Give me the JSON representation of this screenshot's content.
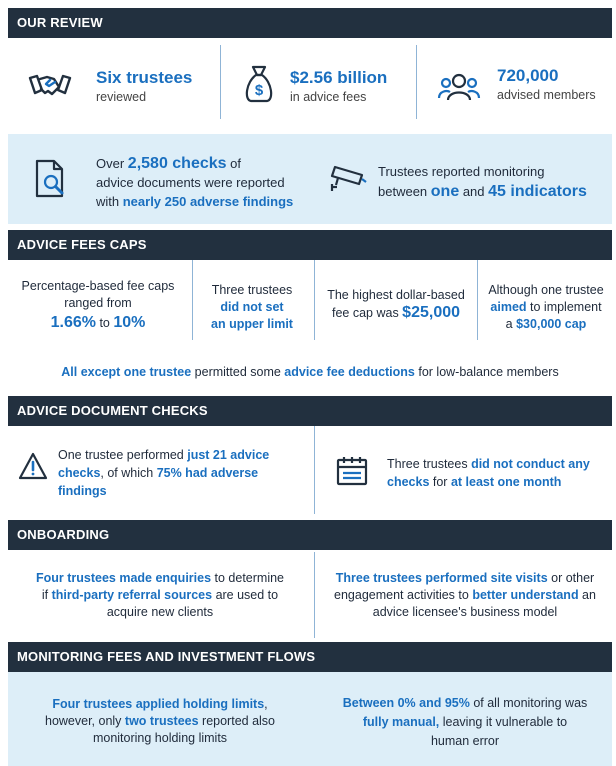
{
  "sections": {
    "review": "OUR REVIEW",
    "fees": "ADVICE FEES CAPS",
    "checks": "ADVICE DOCUMENT CHECKS",
    "onboarding": "ONBOARDING",
    "monitoring": "MONITORING FEES AND INVESTMENT FLOWS"
  },
  "review": {
    "trustees_big": "Six trustees",
    "trustees_small": "reviewed",
    "fees_big": "$2.56 billion",
    "fees_small": "in advice fees",
    "members_big": "720,000",
    "members_small": "advised members",
    "checks": {
      "t1": "Over ",
      "t2": "2,580 checks",
      "t3": " of",
      "t4": "advice documents were reported",
      "t5": "with ",
      "t6": "nearly 250 adverse findings"
    },
    "monitor": {
      "t1": "Trustees reported monitoring",
      "t2": "between ",
      "t3": "one",
      "t4": " and ",
      "t5": "45 indicators"
    }
  },
  "fees": {
    "c1": {
      "t1": "Percentage-based fee caps",
      "t2": "ranged from",
      "t3": "1.66%",
      "t4": " to ",
      "t5": "10%"
    },
    "c2": {
      "t1": "Three trustees",
      "t2": "did not set",
      "t3": "an upper limit"
    },
    "c3": {
      "t1": "The highest dollar-based",
      "t2": "fee cap was ",
      "t3": "$25,000"
    },
    "c4": {
      "t1": "Although one trustee",
      "t2": "aimed",
      "t3": " to implement",
      "t4": "a ",
      "t5": "$30,000 cap"
    },
    "note": {
      "t1": "All except one trustee",
      "t2": " permitted some ",
      "t3": "advice fee deductions",
      "t4": " for low-balance members"
    }
  },
  "checks": {
    "left": {
      "t1": "One trustee performed ",
      "t2": "just 21 advice",
      "t3": "checks",
      "t4": ", of which ",
      "t5": "75% had adverse",
      "t6": "findings"
    },
    "right": {
      "t1": "Three trustees ",
      "t2": "did not conduct any",
      "t3": "checks",
      "t4": " for ",
      "t5": "at least one month"
    }
  },
  "onboarding": {
    "left": {
      "t1": "Four trustees made enquiries",
      "t2": " to determine",
      "t3": "if ",
      "t4": "third-party referral sources",
      "t5": " are used to",
      "t6": "acquire new clients"
    },
    "right": {
      "t1": "Three trustees performed site visits",
      "t2": " or other",
      "t3": "engagement activities to ",
      "t4": "better understand",
      "t5": " an",
      "t6": "advice licensee's business model"
    }
  },
  "monitoring": {
    "left": {
      "t1": "Four trustees applied holding limits",
      "t2": ",",
      "t3": "however, only ",
      "t4": "two trustees",
      "t5": " reported also",
      "t6": "monitoring holding limits"
    },
    "right": {
      "t1": "Between 0% and 95%",
      "t2": " of all monitoring was",
      "t3": "fully manual,",
      "t4": " leaving it vulnerable to",
      "t5": "human error"
    }
  },
  "icons": [
    "handshake-icon",
    "money-bag-icon",
    "people-icon",
    "document-search-icon",
    "cctv-camera-icon",
    "warning-icon",
    "calendar-icon"
  ],
  "colors": {
    "header": "#22303f",
    "accent": "#1a6fbf",
    "panel": "#ddeef8"
  }
}
